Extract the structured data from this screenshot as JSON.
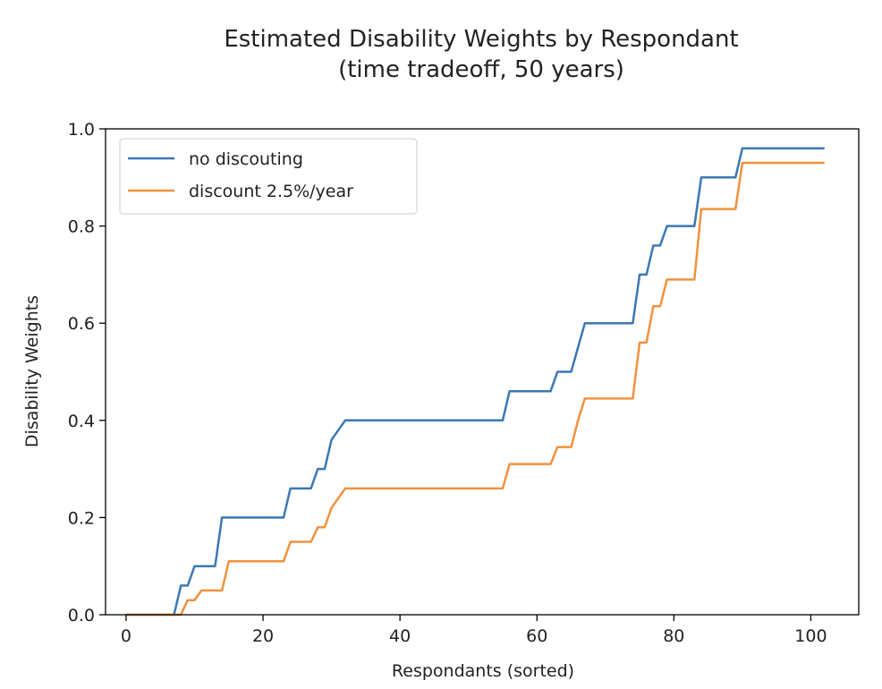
{
  "chart_data": {
    "type": "line",
    "title_line1": "Estimated Disability Weights by Respondant",
    "title_line2": "(time tradeoff, 50 years)",
    "xlabel": "Respondants (sorted)",
    "ylabel": "Disability Weights",
    "xlim": [
      -3,
      107
    ],
    "ylim": [
      0,
      1.0
    ],
    "x_ticks": [
      0,
      20,
      40,
      60,
      80,
      100
    ],
    "x_tick_labels": [
      "0",
      "20",
      "40",
      "60",
      "80",
      "100"
    ],
    "y_ticks": [
      0.0,
      0.2,
      0.4,
      0.6,
      0.8,
      1.0
    ],
    "y_tick_labels": [
      "0.0",
      "0.2",
      "0.4",
      "0.6",
      "0.8",
      "1.0"
    ],
    "grid": false,
    "legend_position": "upper-left",
    "series": [
      {
        "name": "no discouting",
        "color": "#3b78b4",
        "step_x": [
          8,
          9,
          10,
          11,
          14,
          15,
          23,
          24,
          27,
          28,
          30,
          31,
          32,
          33,
          55,
          56,
          62,
          63,
          65,
          66,
          67,
          74,
          75,
          76,
          77,
          78,
          79,
          83,
          84,
          89,
          90
        ],
        "values": [
          0,
          0.0,
          0.0,
          0.0,
          0.0,
          0.0,
          0.0,
          0.0,
          0.06,
          0.06,
          0.1,
          0.1,
          0.1,
          0.1,
          0.2,
          0.2,
          0.2,
          0.2,
          0.2,
          0.2,
          0.2,
          0.2,
          0.2,
          0.2,
          0.26,
          0.26,
          0.26,
          0.26,
          0.3,
          0.3,
          0.36,
          0.38,
          0.4,
          0.4,
          0.4,
          0.4,
          0.4,
          0.4,
          0.4,
          0.4,
          0.4,
          0.4,
          0.4,
          0.4,
          0.4,
          0.4,
          0.4,
          0.4,
          0.4,
          0.4,
          0.4,
          0.4,
          0.4,
          0.4,
          0.4,
          0.4,
          0.46,
          0.46,
          0.46,
          0.46,
          0.46,
          0.46,
          0.46,
          0.5,
          0.5,
          0.5,
          0.55,
          0.6,
          0.6,
          0.6,
          0.6,
          0.6,
          0.6,
          0.6,
          0.6,
          0.7,
          0.7,
          0.76,
          0.76,
          0.8,
          0.8,
          0.8,
          0.8,
          0.8,
          0.9,
          0.9,
          0.9,
          0.9,
          0.9,
          0.9,
          0.96,
          0.96,
          0.96,
          0.96,
          0.96,
          0.96,
          0.96,
          0.96,
          0.96,
          0.96,
          0.96,
          0.96,
          0.96
        ]
      },
      {
        "name": "discount 2.5%/year",
        "color": "#f0923e",
        "values": [
          0,
          0.0,
          0.0,
          0.0,
          0.0,
          0.0,
          0.0,
          0.0,
          0.0,
          0.03,
          0.03,
          0.05,
          0.05,
          0.05,
          0.05,
          0.11,
          0.11,
          0.11,
          0.11,
          0.11,
          0.11,
          0.11,
          0.11,
          0.11,
          0.15,
          0.15,
          0.15,
          0.15,
          0.18,
          0.18,
          0.22,
          0.24,
          0.26,
          0.26,
          0.26,
          0.26,
          0.26,
          0.26,
          0.26,
          0.26,
          0.26,
          0.26,
          0.26,
          0.26,
          0.26,
          0.26,
          0.26,
          0.26,
          0.26,
          0.26,
          0.26,
          0.26,
          0.26,
          0.26,
          0.26,
          0.26,
          0.31,
          0.31,
          0.31,
          0.31,
          0.31,
          0.31,
          0.31,
          0.345,
          0.345,
          0.345,
          0.4,
          0.445,
          0.445,
          0.445,
          0.445,
          0.445,
          0.445,
          0.445,
          0.445,
          0.56,
          0.56,
          0.635,
          0.635,
          0.69,
          0.69,
          0.69,
          0.69,
          0.69,
          0.835,
          0.835,
          0.835,
          0.835,
          0.835,
          0.835,
          0.93,
          0.93,
          0.93,
          0.93,
          0.93,
          0.93,
          0.93,
          0.93,
          0.93,
          0.93,
          0.93,
          0.93,
          0.93
        ]
      }
    ]
  }
}
